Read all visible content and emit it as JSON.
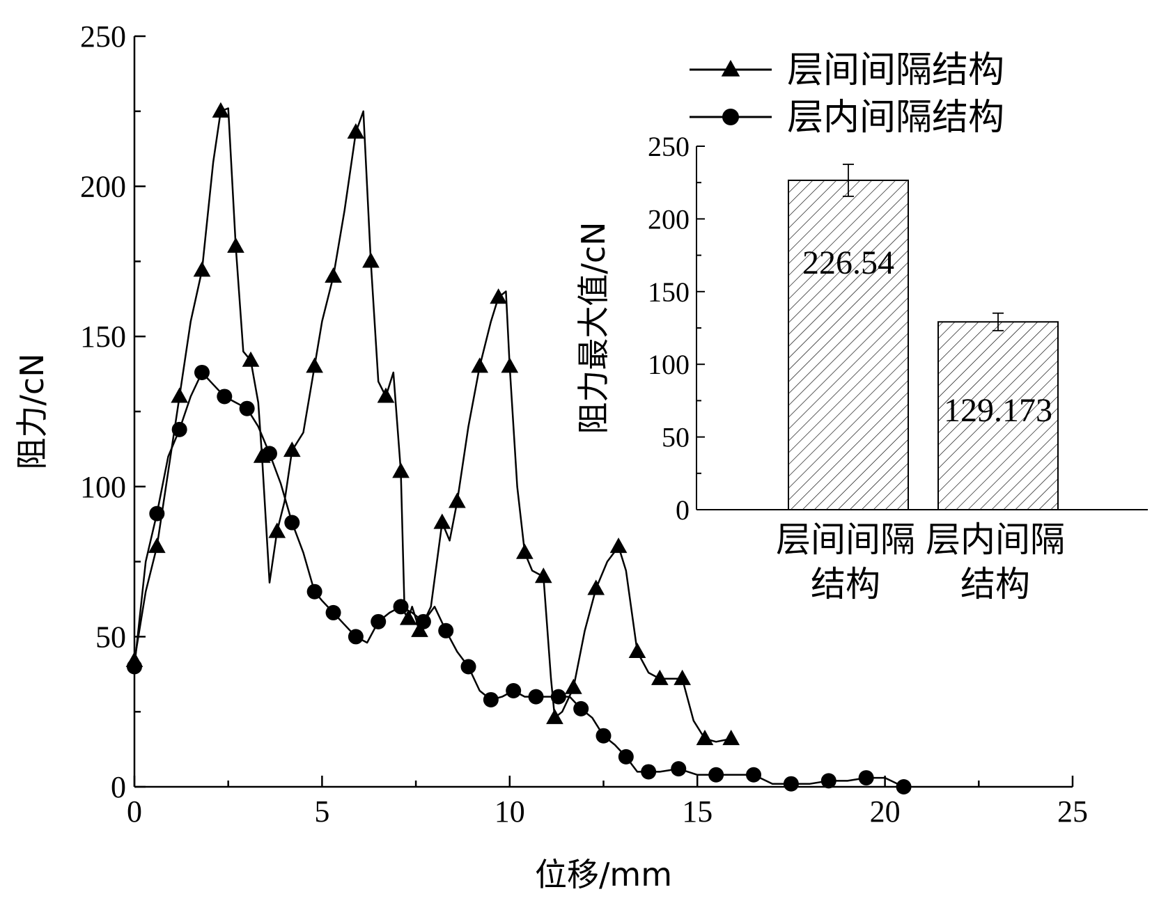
{
  "chart_data": [
    {
      "type": "line",
      "xlabel": "位移/mm",
      "ylabel": "阻力/cN",
      "xlim": [
        0,
        25
      ],
      "ylim": [
        0,
        250
      ],
      "xticks": [
        "0",
        "5",
        "10",
        "15",
        "20",
        "25"
      ],
      "yticks": [
        "0",
        "50",
        "100",
        "150",
        "200",
        "250"
      ],
      "legend_position": "top-right",
      "series": [
        {
          "name": "层间间隔结构",
          "marker": "triangle",
          "x": [
            0,
            0.3,
            0.6,
            0.9,
            1.2,
            1.5,
            1.8,
            2.1,
            2.3,
            2.5,
            2.7,
            2.9,
            3.1,
            3.3,
            3.4,
            3.6,
            3.8,
            4.0,
            4.2,
            4.5,
            4.8,
            5.0,
            5.3,
            5.6,
            5.9,
            6.1,
            6.3,
            6.5,
            6.7,
            6.9,
            7.1,
            7.2,
            7.3,
            7.4,
            7.6,
            7.9,
            8.2,
            8.4,
            8.6,
            8.9,
            9.2,
            9.5,
            9.7,
            9.9,
            10.0,
            10.2,
            10.4,
            10.6,
            10.9,
            11.1,
            11.2,
            11.4,
            11.7,
            12.0,
            12.3,
            12.6,
            12.9,
            13.1,
            13.4,
            13.7,
            14.0,
            14.3,
            14.6,
            14.9,
            15.2,
            15.5,
            15.9
          ],
          "y": [
            42,
            65,
            80,
            105,
            130,
            155,
            172,
            208,
            225,
            226,
            180,
            145,
            142,
            128,
            110,
            68,
            85,
            95,
            112,
            118,
            140,
            155,
            170,
            192,
            218,
            225,
            175,
            135,
            130,
            138,
            105,
            58,
            56,
            60,
            52,
            60,
            88,
            82,
            95,
            120,
            140,
            155,
            163,
            165,
            140,
            100,
            78,
            72,
            70,
            36,
            23,
            25,
            33,
            52,
            66,
            75,
            80,
            72,
            45,
            38,
            36,
            36,
            36,
            22,
            16,
            15,
            16
          ]
        },
        {
          "name": "层内间隔结构",
          "marker": "circle",
          "x": [
            0,
            0.3,
            0.6,
            0.9,
            1.2,
            1.5,
            1.8,
            2.1,
            2.4,
            2.7,
            3.0,
            3.3,
            3.6,
            3.9,
            4.2,
            4.5,
            4.8,
            5.0,
            5.3,
            5.6,
            5.9,
            6.2,
            6.5,
            6.8,
            7.1,
            7.4,
            7.7,
            8.0,
            8.3,
            8.6,
            8.9,
            9.2,
            9.5,
            9.8,
            10.1,
            10.4,
            10.7,
            11.0,
            11.3,
            11.6,
            11.9,
            12.2,
            12.5,
            12.8,
            13.1,
            13.4,
            13.7,
            14.0,
            14.5,
            15.0,
            15.5,
            16.0,
            16.5,
            17.0,
            17.5,
            18.0,
            18.5,
            19.0,
            19.5,
            20.0,
            20.5
          ],
          "y": [
            40,
            75,
            91,
            110,
            119,
            130,
            138,
            134,
            130,
            128,
            126,
            120,
            111,
            101,
            88,
            78,
            65,
            62,
            58,
            54,
            50,
            48,
            55,
            58,
            60,
            58,
            55,
            60,
            52,
            45,
            40,
            32,
            29,
            30,
            32,
            30,
            30,
            30,
            30,
            30,
            26,
            23,
            17,
            14,
            10,
            5,
            5,
            5,
            6,
            4,
            4,
            4,
            4,
            1,
            1,
            1,
            2,
            2,
            3,
            3,
            0
          ]
        }
      ]
    },
    {
      "type": "bar",
      "categories": [
        "层间间隔结构",
        "层内间隔结构"
      ],
      "category_lines": [
        [
          "层间间隔",
          "结构"
        ],
        [
          "层内间隔",
          "结构"
        ]
      ],
      "values": [
        226.54,
        129.173
      ],
      "value_labels": [
        "226.54",
        "129.173"
      ],
      "error": [
        11,
        6
      ],
      "ylabel": "阻力最大值/cN",
      "ylim": [
        0,
        250
      ],
      "yticks": [
        "0",
        "50",
        "100",
        "150",
        "200",
        "250"
      ],
      "pattern": "diagonal-hatch"
    }
  ]
}
